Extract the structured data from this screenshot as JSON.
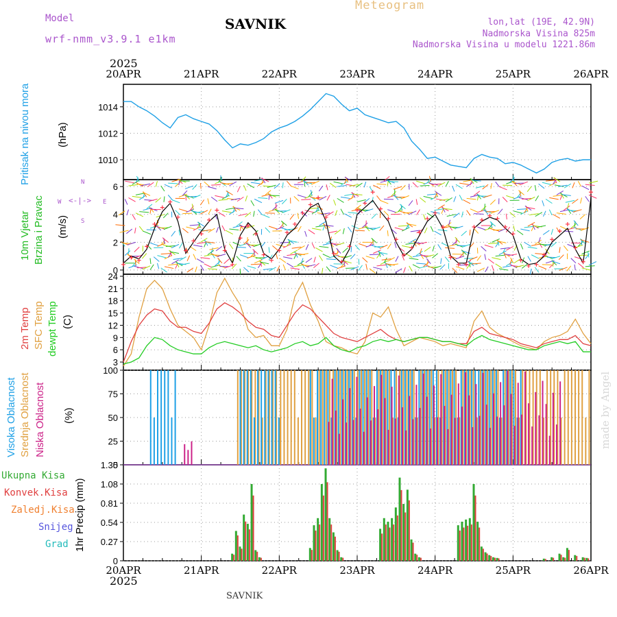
{
  "header": {
    "model_label": "Model",
    "model_name": "wrf-nmm_v3.9.1  e1km",
    "station": "SAVNIK",
    "meteogram": "Meteogram",
    "lonlat": "lon,lat (19E, 42.9N)",
    "elevation": "Nadmorska Visina 825m",
    "model_elevation": "Nadmorska Visina u modelu 1221.86m",
    "year_top": "2025",
    "year_bottom": "2025",
    "footer": "SAVNIK",
    "watermark": "made by Angel"
  },
  "colors": {
    "pressure": "#1ea0e6",
    "wind_label": "#22bb22",
    "temp_2m": "#e04040",
    "temp_sfc": "#e0a040",
    "dewpoint": "#22cc22",
    "cloud_high": "#1ea0e6",
    "cloud_mid": "#e0a040",
    "cloud_low": "#cc2288",
    "precip_total": "#33aa33",
    "precip_conv": "#e04040",
    "compass": "#aa55cc"
  },
  "chart_data": [
    {
      "type": "line",
      "id": "pressure",
      "ylabel": "Pritisak na nivou mora",
      "unit": "(hPa)",
      "x_ticks": [
        "20APR",
        "21APR",
        "22APR",
        "23APR",
        "24APR",
        "25APR",
        "26APR"
      ],
      "ylim": [
        1008.5,
        1015.7
      ],
      "y_ticks": [
        1010,
        1012,
        1014
      ],
      "grid": true,
      "x": [
        0,
        0.1,
        0.2,
        0.3,
        0.4,
        0.5,
        0.6,
        0.7,
        0.8,
        0.9,
        1.0,
        1.1,
        1.2,
        1.3,
        1.4,
        1.5,
        1.6,
        1.7,
        1.8,
        1.9,
        2.0,
        2.1,
        2.2,
        2.3,
        2.4,
        2.5,
        2.6,
        2.7,
        2.8,
        2.9,
        3.0,
        3.1,
        3.2,
        3.3,
        3.4,
        3.5,
        3.6,
        3.7,
        3.8,
        3.9,
        4.0,
        4.1,
        4.2,
        4.3,
        4.4,
        4.5,
        4.6,
        4.7,
        4.8,
        4.9,
        5.0,
        5.1,
        5.2,
        5.3,
        5.4,
        5.5,
        5.6,
        5.7,
        5.8,
        5.9,
        6.0
      ],
      "series": [
        {
          "values": [
            1014.4,
            1014.4,
            1014.0,
            1013.7,
            1013.3,
            1012.8,
            1012.4,
            1013.2,
            1013.4,
            1013.1,
            1012.9,
            1012.7,
            1012.2,
            1011.5,
            1010.9,
            1011.2,
            1011.1,
            1011.3,
            1011.6,
            1012.1,
            1012.4,
            1012.6,
            1012.9,
            1013.3,
            1013.8,
            1014.4,
            1015.0,
            1014.8,
            1014.2,
            1013.7,
            1013.9,
            1013.4,
            1013.2,
            1013.0,
            1012.8,
            1012.9,
            1012.4,
            1011.4,
            1010.8,
            1010.1,
            1010.2,
            1009.9,
            1009.6,
            1009.5,
            1009.4,
            1010.1,
            1010.4,
            1010.2,
            1010.1,
            1009.7,
            1009.8,
            1009.6,
            1009.3,
            1009.0,
            1009.3,
            1009.8,
            1010.0,
            1010.1,
            1009.9,
            1010.0,
            1010.0
          ]
        }
      ]
    },
    {
      "type": "line",
      "id": "wind",
      "ylabel": "10m Vjetar Brzina i Pravac",
      "unit": "(m/s)",
      "compass": {
        "n": "N",
        "w": "W",
        "e": "E",
        "s": "S"
      },
      "ylim": [
        -0.3,
        6.5
      ],
      "y_ticks": [
        0,
        2,
        4,
        6
      ],
      "grid": true,
      "x": [
        0,
        0.1,
        0.2,
        0.3,
        0.4,
        0.5,
        0.6,
        0.7,
        0.8,
        0.9,
        1.0,
        1.1,
        1.2,
        1.3,
        1.4,
        1.5,
        1.6,
        1.7,
        1.8,
        1.9,
        2.0,
        2.1,
        2.2,
        2.3,
        2.4,
        2.5,
        2.6,
        2.7,
        2.8,
        2.9,
        3.0,
        3.1,
        3.2,
        3.3,
        3.4,
        3.5,
        3.6,
        3.7,
        3.8,
        3.9,
        4.0,
        4.1,
        4.2,
        4.3,
        4.4,
        4.5,
        4.6,
        4.7,
        4.8,
        4.9,
        5.0,
        5.1,
        5.2,
        5.3,
        5.4,
        5.5,
        5.6,
        5.7,
        5.8,
        5.9,
        6.0
      ],
      "series": [
        {
          "name": "speed",
          "values": [
            0.5,
            1.0,
            0.8,
            1.5,
            3.0,
            4.2,
            4.8,
            3.5,
            1.2,
            2.0,
            2.8,
            3.5,
            4.0,
            1.5,
            0.5,
            2.5,
            3.4,
            2.8,
            1.2,
            0.8,
            1.5,
            2.5,
            3.0,
            3.8,
            4.5,
            4.8,
            3.5,
            1.0,
            0.5,
            1.5,
            4.0,
            4.5,
            5.0,
            4.2,
            3.5,
            2.0,
            1.0,
            1.5,
            2.5,
            3.5,
            4.0,
            3.0,
            1.0,
            0.5,
            0.5,
            3.0,
            3.5,
            3.8,
            3.6,
            3.0,
            2.5,
            0.8,
            0.4,
            0.5,
            1.0,
            2.0,
            2.5,
            3.0,
            1.5,
            0.5,
            5.2
          ]
        },
        {
          "name": "gust",
          "values": [
            0.4,
            0.9,
            0.7,
            1.7,
            3.3,
            4.5,
            4.9,
            3.8,
            1.4,
            2.1,
            2.6,
            3.6,
            4.3,
            1.4,
            0.4,
            2.3,
            3.2,
            2.6,
            1.1,
            0.7,
            1.4,
            2.7,
            3.3,
            4.1,
            4.7,
            5.2,
            3.8,
            1.2,
            0.6,
            1.7,
            4.3,
            4.8,
            5.6,
            4.4,
            3.7,
            2.2,
            1.1,
            1.6,
            2.7,
            3.7,
            4.1,
            3.1,
            0.9,
            0.4,
            0.4,
            3.1,
            3.6,
            3.9,
            3.7,
            3.1,
            2.6,
            0.7,
            0.3,
            0.4,
            1.1,
            2.2,
            2.8,
            3.3,
            1.6,
            0.6,
            5.6
          ]
        }
      ]
    },
    {
      "type": "line",
      "id": "temperature",
      "labels": [
        "2m Temp",
        "SFC Temp",
        "dewpt Temp"
      ],
      "unit": "(C)",
      "ylim": [
        1,
        24.5
      ],
      "y_ticks": [
        3,
        6,
        9,
        12,
        15,
        18,
        21,
        24
      ],
      "grid": true,
      "x": [
        0,
        0.1,
        0.2,
        0.3,
        0.4,
        0.5,
        0.6,
        0.7,
        0.8,
        0.9,
        1.0,
        1.1,
        1.2,
        1.3,
        1.4,
        1.5,
        1.6,
        1.7,
        1.8,
        1.9,
        2.0,
        2.1,
        2.2,
        2.3,
        2.4,
        2.5,
        2.6,
        2.7,
        2.8,
        2.9,
        3.0,
        3.1,
        3.2,
        3.3,
        3.4,
        3.5,
        3.6,
        3.7,
        3.8,
        3.9,
        4.0,
        4.1,
        4.2,
        4.3,
        4.4,
        4.5,
        4.6,
        4.7,
        4.8,
        4.9,
        5.0,
        5.1,
        5.2,
        5.3,
        5.4,
        5.5,
        5.6,
        5.7,
        5.8,
        5.9,
        6.0
      ],
      "series": [
        {
          "name": "2m Temp",
          "values": [
            3.0,
            8.0,
            12.0,
            14.5,
            16.0,
            15.5,
            13.0,
            11.5,
            11.5,
            10.5,
            10.0,
            12.5,
            16.0,
            17.5,
            16.5,
            15.0,
            13.0,
            11.5,
            11.0,
            9.5,
            9.0,
            12.0,
            15.0,
            17.0,
            16.0,
            14.0,
            12.0,
            10.0,
            9.0,
            8.5,
            8.0,
            9.0,
            10.0,
            11.0,
            9.5,
            8.5,
            8.0,
            8.5,
            9.0,
            9.0,
            8.5,
            8.0,
            8.0,
            7.5,
            7.5,
            10.5,
            11.5,
            10.0,
            9.5,
            9.0,
            8.5,
            7.5,
            7.0,
            6.5,
            7.5,
            8.0,
            8.5,
            8.5,
            9.5,
            7.5,
            7.0
          ]
        },
        {
          "name": "SFC Temp",
          "values": [
            2.0,
            5.0,
            14.0,
            21.0,
            23.0,
            21.0,
            16.0,
            12.0,
            10.5,
            9.0,
            6.0,
            12.0,
            20.0,
            23.5,
            20.0,
            17.0,
            11.0,
            9.0,
            9.5,
            7.0,
            7.0,
            11.0,
            19.0,
            22.5,
            17.0,
            13.0,
            8.0,
            7.0,
            6.5,
            5.5,
            5.0,
            8.0,
            15.0,
            14.0,
            16.5,
            11.0,
            7.0,
            8.0,
            9.0,
            8.5,
            8.0,
            7.0,
            7.5,
            7.0,
            6.5,
            13.0,
            15.5,
            11.5,
            10.0,
            9.0,
            8.0,
            7.0,
            6.5,
            6.0,
            8.0,
            9.0,
            9.5,
            10.5,
            13.5,
            10.0,
            7.5
          ]
        },
        {
          "name": "dewpt Temp",
          "values": [
            2.5,
            3.0,
            4.0,
            7.0,
            9.0,
            8.5,
            7.0,
            6.0,
            5.5,
            5.0,
            5.0,
            6.5,
            7.5,
            8.0,
            7.5,
            7.0,
            6.5,
            7.0,
            6.0,
            5.5,
            6.0,
            6.5,
            7.5,
            8.0,
            7.0,
            7.5,
            9.0,
            7.0,
            6.0,
            5.5,
            6.5,
            7.0,
            8.0,
            8.5,
            8.0,
            8.5,
            8.0,
            8.5,
            9.0,
            9.0,
            8.5,
            8.0,
            8.0,
            7.5,
            7.0,
            8.5,
            9.5,
            8.5,
            8.0,
            7.5,
            7.0,
            6.5,
            6.0,
            6.0,
            7.0,
            7.5,
            8.0,
            7.5,
            8.0,
            5.5,
            5.5
          ]
        }
      ]
    },
    {
      "type": "bar",
      "id": "clouds",
      "labels": [
        "Visoka Oblacnost",
        "Srednja Oblacnost",
        "Niska Oblacnost"
      ],
      "unit": "(%)",
      "ylim": [
        0,
        100
      ],
      "y_ticks": [
        0,
        25,
        50,
        75,
        100
      ],
      "grid": true,
      "segments": [
        {
          "series": "high",
          "from": 0.35,
          "to": 0.7,
          "value": 100
        },
        {
          "series": "low",
          "from": 0.75,
          "to": 0.85,
          "value": 25
        },
        {
          "series": "mid",
          "from": 1.45,
          "to": 2.0,
          "value": 100
        },
        {
          "series": "high",
          "from": 1.5,
          "to": 2.0,
          "value": 100
        },
        {
          "series": "mid",
          "from": 2.0,
          "to": 6.0,
          "value": 100
        },
        {
          "series": "high",
          "from": 2.4,
          "to": 5.1,
          "value": 100
        },
        {
          "series": "low",
          "from": 2.6,
          "to": 5.6,
          "value": 100
        }
      ]
    },
    {
      "type": "bar",
      "id": "precip",
      "labels": [
        "Ukupna Kisa",
        "Konvek.Kisa",
        "Zaledj.Kisa",
        "Snijeg",
        "Grad"
      ],
      "ylabel": "1hr Precip (mm)",
      "ylim": [
        0,
        1.35
      ],
      "y_ticks": [
        0,
        0.27,
        0.54,
        0.81,
        1.08,
        1.35
      ],
      "grid": true,
      "x": [
        1.4,
        1.45,
        1.5,
        1.55,
        1.6,
        1.65,
        1.7,
        1.75,
        2.4,
        2.45,
        2.5,
        2.55,
        2.6,
        2.65,
        2.7,
        2.75,
        2.8,
        3.3,
        3.35,
        3.4,
        3.45,
        3.5,
        3.55,
        3.6,
        3.65,
        3.7,
        3.75,
        3.8,
        4.3,
        4.35,
        4.4,
        4.45,
        4.5,
        4.55,
        4.6,
        4.65,
        4.7,
        4.75,
        4.8,
        5.4,
        5.5,
        5.6,
        5.65,
        5.7,
        5.8,
        5.9,
        5.95
      ],
      "values": [
        0.1,
        0.42,
        0.2,
        0.65,
        0.52,
        1.08,
        0.15,
        0.05,
        0.18,
        0.5,
        0.6,
        1.08,
        1.3,
        0.6,
        0.4,
        0.15,
        0.05,
        0.45,
        0.6,
        0.55,
        0.6,
        0.75,
        1.17,
        0.8,
        1.0,
        0.3,
        0.1,
        0.05,
        0.5,
        0.55,
        0.58,
        0.6,
        1.08,
        0.55,
        0.2,
        0.12,
        0.08,
        0.05,
        0.04,
        0.03,
        0.05,
        0.1,
        0.05,
        0.18,
        0.08,
        0.05,
        0.04
      ]
    }
  ]
}
